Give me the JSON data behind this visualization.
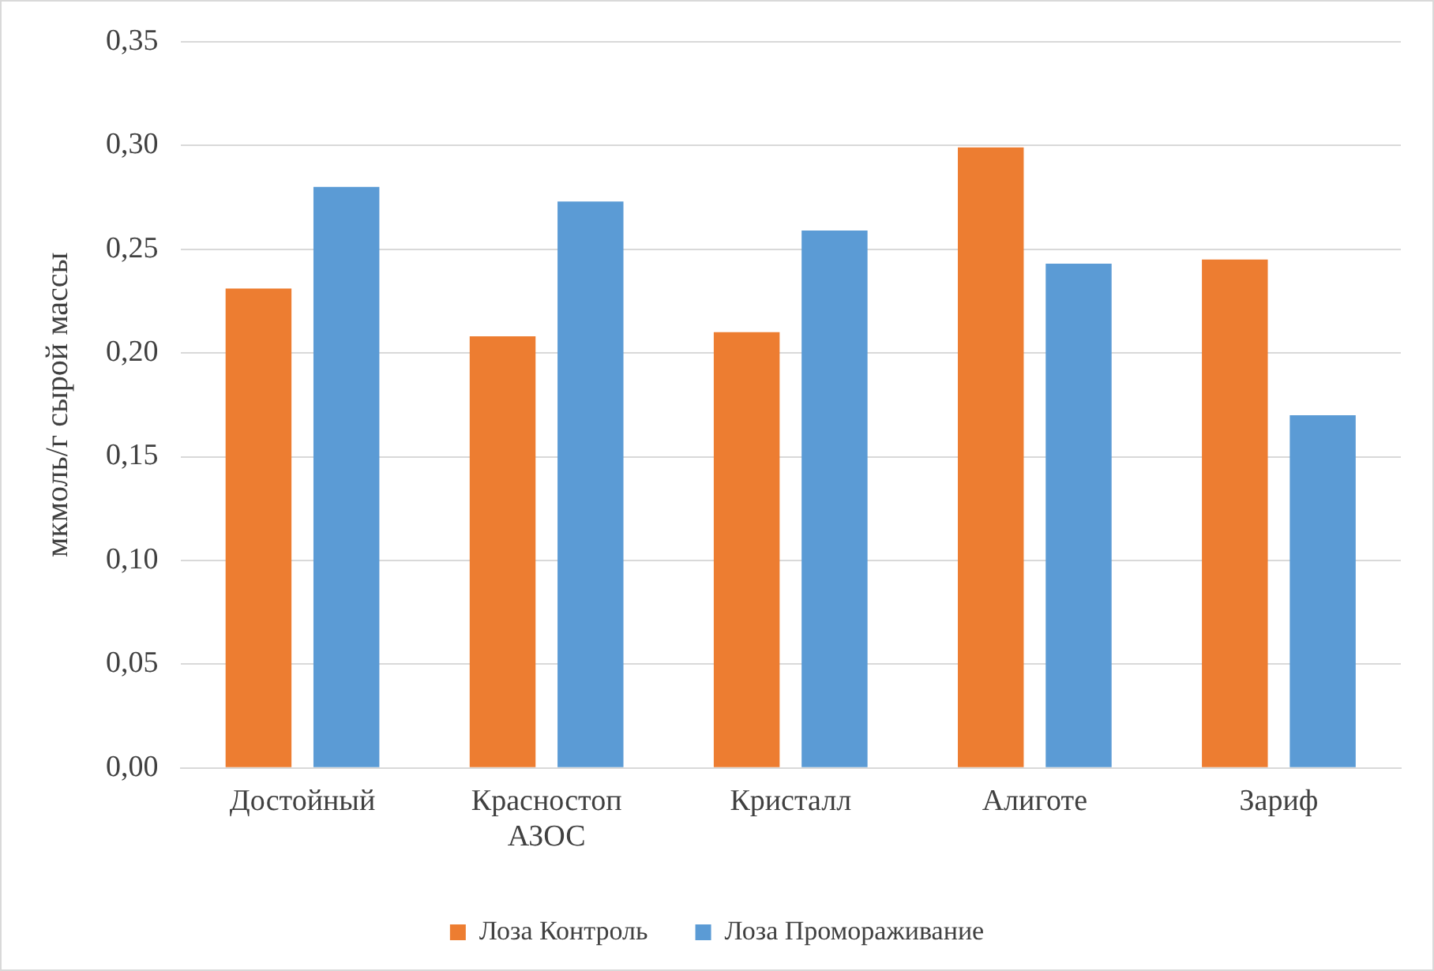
{
  "chart_data": {
    "type": "bar",
    "ylabel": "мкмоль/г сырой массы",
    "categories": [
      "Достойный",
      "Красностоп АЗОС",
      "Кристалл",
      "Алиготе",
      "Зариф"
    ],
    "series": [
      {
        "name": "Лоза Контроль",
        "color": "#ed7d31",
        "values": [
          0.231,
          0.208,
          0.21,
          0.299,
          0.245
        ]
      },
      {
        "name": "Лоза Промораживание",
        "color": "#5b9bd5",
        "values": [
          0.28,
          0.273,
          0.259,
          0.243,
          0.17
        ]
      }
    ],
    "ylim": [
      0,
      0.35
    ],
    "yticks": [
      {
        "value": 0,
        "label": "0,00"
      },
      {
        "value": 0.05,
        "label": "0,05"
      },
      {
        "value": 0.1,
        "label": "0,10"
      },
      {
        "value": 0.15,
        "label": "0,15"
      },
      {
        "value": 0.2,
        "label": "0,20"
      },
      {
        "value": 0.25,
        "label": "0,25"
      },
      {
        "value": 0.3,
        "label": "0,30"
      },
      {
        "value": 0.35,
        "label": "0,35"
      }
    ],
    "grid": "y",
    "legend": "bottom"
  }
}
